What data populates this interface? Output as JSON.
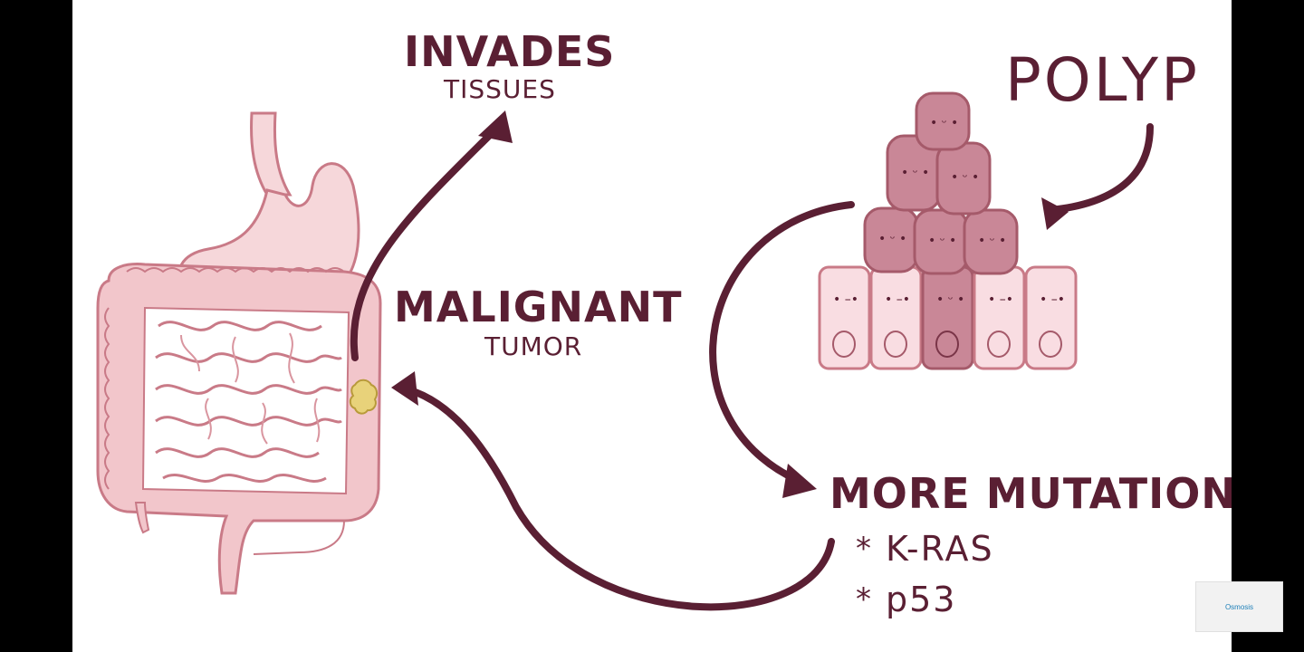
{
  "labels": {
    "invades": "INVADES",
    "tissues": "TISSUES",
    "malignant": "MALIGNANT",
    "tumor": "TUMOR",
    "polyp": "POLYP",
    "more_mutations": "MORE MUTATIONS"
  },
  "mutations": [
    {
      "bullet": "*",
      "name": "K-RAS"
    },
    {
      "bullet": "*",
      "name": "p53"
    }
  ],
  "watermark": {
    "text": "Osmosis"
  },
  "colors": {
    "arrow": "#5a1f33",
    "organ_fill": "#f2c6cb",
    "organ_stroke": "#c97a87",
    "tumor": "#e8d27a",
    "cell_normal": "#f9dde2",
    "cell_polyp": "#c98797"
  }
}
